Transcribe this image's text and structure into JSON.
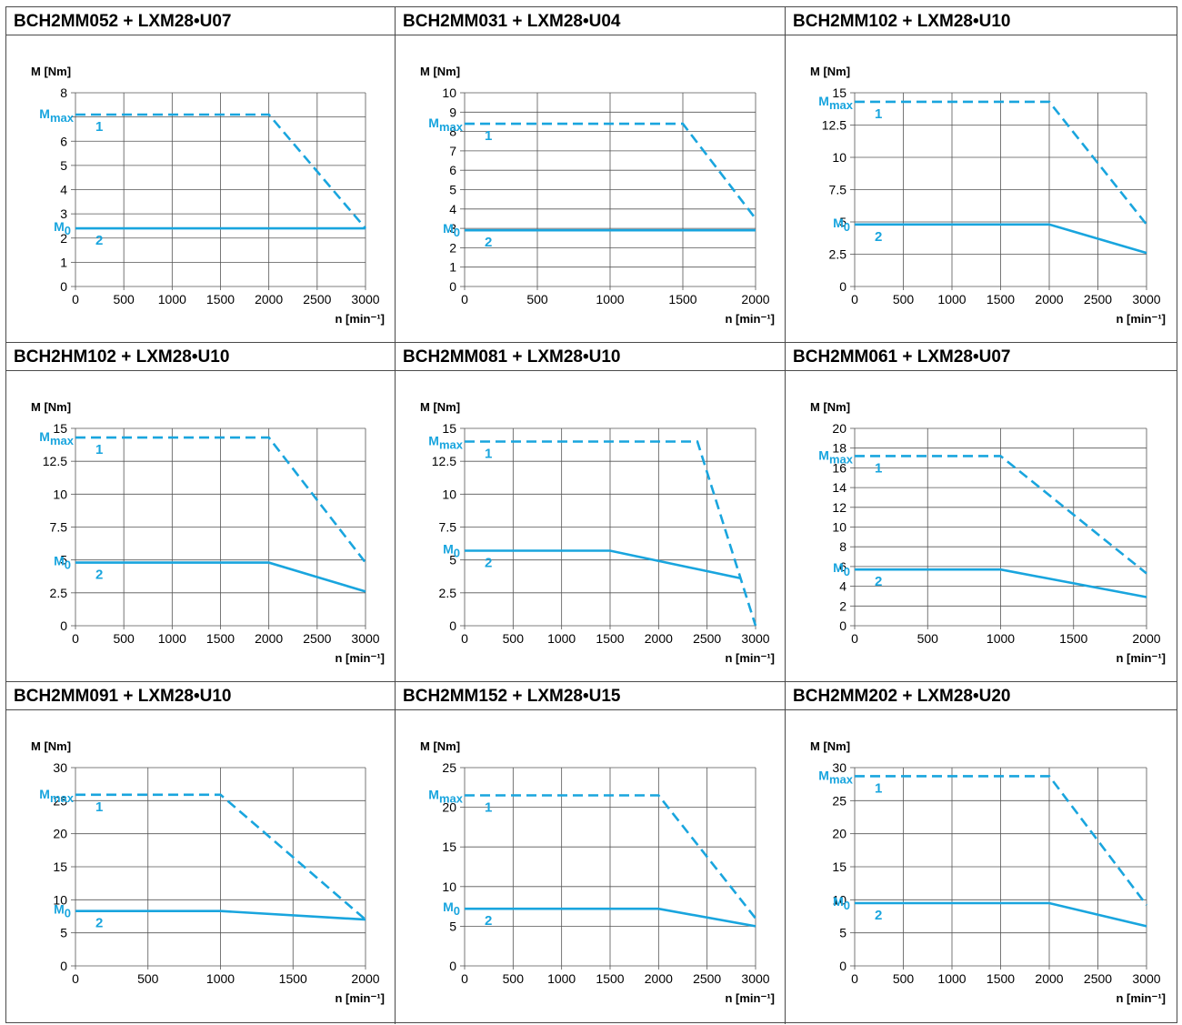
{
  "colors": {
    "curve": "#19a5de",
    "grid": "#555555",
    "text": "#000000",
    "border": "#4a4a4a"
  },
  "chart_data": [
    {
      "type": "line",
      "title": "BCH2MM052 + LXM28•U07",
      "ylabel": "M [Nm]",
      "xlabel": "n [min⁻¹]",
      "xlim": [
        0,
        3000
      ],
      "ylim": [
        0,
        8
      ],
      "xticks": [
        0,
        500,
        1000,
        1500,
        2000,
        2500,
        3000
      ],
      "yticks": [
        0,
        1,
        2,
        3,
        4,
        5,
        6,
        7,
        8
      ],
      "ytick_labels": [
        "0",
        "1",
        "2",
        "3",
        "4",
        "5",
        "6",
        "",
        "8"
      ],
      "mmax": 7.1,
      "m0": 2.4,
      "series": [
        {
          "name": "1",
          "style": "dashed",
          "x": [
            0,
            2000,
            3000
          ],
          "y": [
            7.1,
            7.1,
            2.4
          ]
        },
        {
          "name": "2",
          "style": "solid",
          "x": [
            0,
            3000
          ],
          "y": [
            2.4,
            2.4
          ]
        }
      ]
    },
    {
      "type": "line",
      "title": "BCH2MM031 + LXM28•U04",
      "ylabel": "M [Nm]",
      "xlabel": "n [min⁻¹]",
      "xlim": [
        0,
        2000
      ],
      "ylim": [
        0,
        10
      ],
      "xticks": [
        0,
        500,
        1000,
        1500,
        2000
      ],
      "yticks": [
        0,
        1,
        2,
        3,
        4,
        5,
        6,
        7,
        8,
        9,
        10
      ],
      "ytick_labels": [
        "0",
        "1",
        "2",
        "3",
        "4",
        "5",
        "6",
        "7",
        "8",
        "9",
        "10"
      ],
      "mmax": 8.4,
      "m0": 2.9,
      "series": [
        {
          "name": "1",
          "style": "dashed",
          "x": [
            0,
            1500,
            2000
          ],
          "y": [
            8.4,
            8.4,
            3.5
          ]
        },
        {
          "name": "2",
          "style": "solid",
          "x": [
            0,
            2000
          ],
          "y": [
            2.9,
            2.9
          ]
        }
      ]
    },
    {
      "type": "line",
      "title": "BCH2MM102 + LXM28•U10",
      "ylabel": "M [Nm]",
      "xlabel": "n [min⁻¹]",
      "xlim": [
        0,
        3000
      ],
      "ylim": [
        0,
        15
      ],
      "xticks": [
        0,
        500,
        1000,
        1500,
        2000,
        2500,
        3000
      ],
      "yticks": [
        0,
        2.5,
        5,
        7.5,
        10,
        12.5,
        15
      ],
      "ytick_labels": [
        "0",
        "2.5",
        "5",
        "7.5",
        "10",
        "12.5",
        "15"
      ],
      "mmax": 14.3,
      "m0": 4.8,
      "series": [
        {
          "name": "1",
          "style": "dashed",
          "x": [
            0,
            2000,
            3000
          ],
          "y": [
            14.3,
            14.3,
            4.8
          ]
        },
        {
          "name": "2",
          "style": "solid",
          "x": [
            0,
            2000,
            3000
          ],
          "y": [
            4.8,
            4.8,
            2.6
          ]
        }
      ]
    },
    {
      "type": "line",
      "title": "BCH2HM102 + LXM28•U10",
      "ylabel": "M [Nm]",
      "xlabel": "n [min⁻¹]",
      "xlim": [
        0,
        3000
      ],
      "ylim": [
        0,
        15
      ],
      "xticks": [
        0,
        500,
        1000,
        1500,
        2000,
        2500,
        3000
      ],
      "yticks": [
        0,
        2.5,
        5,
        7.5,
        10,
        12.5,
        15
      ],
      "ytick_labels": [
        "0",
        "2.5",
        "5",
        "7.5",
        "10",
        "12.5",
        "15"
      ],
      "mmax": 14.3,
      "m0": 4.8,
      "series": [
        {
          "name": "1",
          "style": "dashed",
          "x": [
            0,
            2000,
            3000
          ],
          "y": [
            14.3,
            14.3,
            4.8
          ]
        },
        {
          "name": "2",
          "style": "solid",
          "x": [
            0,
            2000,
            3000
          ],
          "y": [
            4.8,
            4.8,
            2.6
          ]
        }
      ]
    },
    {
      "type": "line",
      "title": "BCH2MM081 + LXM28•U10",
      "ylabel": "M [Nm]",
      "xlabel": "n [min⁻¹]",
      "xlim": [
        0,
        3000
      ],
      "ylim": [
        0,
        15
      ],
      "xticks": [
        0,
        500,
        1000,
        1500,
        2000,
        2500,
        3000
      ],
      "yticks": [
        0,
        2.5,
        5,
        7.5,
        10,
        12.5,
        15
      ],
      "ytick_labels": [
        "0",
        "2.5",
        "5",
        "7.5",
        "10",
        "12.5",
        "15"
      ],
      "mmax": 14.0,
      "m0": 5.7,
      "series": [
        {
          "name": "1",
          "style": "dashed",
          "x": [
            0,
            2400,
            3000
          ],
          "y": [
            14.0,
            14.0,
            0
          ]
        },
        {
          "name": "2",
          "style": "solid",
          "x": [
            0,
            1500,
            2850
          ],
          "y": [
            5.7,
            5.7,
            3.6
          ]
        }
      ]
    },
    {
      "type": "line",
      "title": "BCH2MM061 + LXM28•U07",
      "ylabel": "M [Nm]",
      "xlabel": "n [min⁻¹]",
      "xlim": [
        0,
        2000
      ],
      "ylim": [
        0,
        20
      ],
      "xticks": [
        0,
        500,
        1000,
        1500,
        2000
      ],
      "yticks": [
        0,
        2,
        4,
        6,
        8,
        10,
        12,
        14,
        16,
        18,
        20
      ],
      "ytick_labels": [
        "0",
        "2",
        "4",
        "6",
        "8",
        "10",
        "12",
        "14",
        "16",
        "18",
        "20"
      ],
      "mmax": 17.2,
      "m0": 5.7,
      "series": [
        {
          "name": "1",
          "style": "dashed",
          "x": [
            0,
            1000,
            2000
          ],
          "y": [
            17.2,
            17.2,
            5.3
          ]
        },
        {
          "name": "2",
          "style": "solid",
          "x": [
            0,
            1000,
            2000
          ],
          "y": [
            5.7,
            5.7,
            2.9
          ]
        }
      ]
    },
    {
      "type": "line",
      "title": "BCH2MM091 + LXM28•U10",
      "ylabel": "M [Nm]",
      "xlabel": "n [min⁻¹]",
      "xlim": [
        0,
        2000
      ],
      "ylim": [
        0,
        30
      ],
      "xticks": [
        0,
        500,
        1000,
        1500,
        2000
      ],
      "yticks": [
        0,
        5,
        10,
        15,
        20,
        25,
        30
      ],
      "ytick_labels": [
        "0",
        "5",
        "10",
        "15",
        "20",
        "25",
        "30"
      ],
      "mmax": 25.9,
      "m0": 8.3,
      "series": [
        {
          "name": "1",
          "style": "dashed",
          "x": [
            0,
            1000,
            2000
          ],
          "y": [
            25.9,
            25.9,
            7.0
          ]
        },
        {
          "name": "2",
          "style": "solid",
          "x": [
            0,
            1000,
            2000
          ],
          "y": [
            8.3,
            8.3,
            7.0
          ]
        }
      ]
    },
    {
      "type": "line",
      "title": "BCH2MM152 + LXM28•U15",
      "ylabel": "M [Nm]",
      "xlabel": "n [min⁻¹]",
      "xlim": [
        0,
        3000
      ],
      "ylim": [
        0,
        25
      ],
      "xticks": [
        0,
        500,
        1000,
        1500,
        2000,
        2500,
        3000
      ],
      "yticks": [
        0,
        5,
        10,
        15,
        20,
        25
      ],
      "ytick_labels": [
        "0",
        "5",
        "10",
        "15",
        "20",
        "25"
      ],
      "mmax": 21.5,
      "m0": 7.2,
      "series": [
        {
          "name": "1",
          "style": "dashed",
          "x": [
            0,
            2000,
            3000
          ],
          "y": [
            21.5,
            21.5,
            6.0
          ]
        },
        {
          "name": "2",
          "style": "solid",
          "x": [
            0,
            2000,
            3000
          ],
          "y": [
            7.2,
            7.2,
            5.0
          ]
        }
      ]
    },
    {
      "type": "line",
      "title": "BCH2MM202 + LXM28•U20",
      "ylabel": "M [Nm]",
      "xlabel": "n [min⁻¹]",
      "xlim": [
        0,
        3000
      ],
      "ylim": [
        0,
        30
      ],
      "xticks": [
        0,
        500,
        1000,
        1500,
        2000,
        2500,
        3000
      ],
      "yticks": [
        0,
        5,
        10,
        15,
        20,
        25,
        30
      ],
      "ytick_labels": [
        "0",
        "5",
        "10",
        "15",
        "20",
        "25",
        "30"
      ],
      "mmax": 28.7,
      "m0": 9.5,
      "series": [
        {
          "name": "1",
          "style": "dashed",
          "x": [
            0,
            2000,
            3000
          ],
          "y": [
            28.7,
            28.7,
            9.2
          ]
        },
        {
          "name": "2",
          "style": "solid",
          "x": [
            0,
            2000,
            3000
          ],
          "y": [
            9.5,
            9.5,
            6.0
          ]
        }
      ]
    }
  ]
}
